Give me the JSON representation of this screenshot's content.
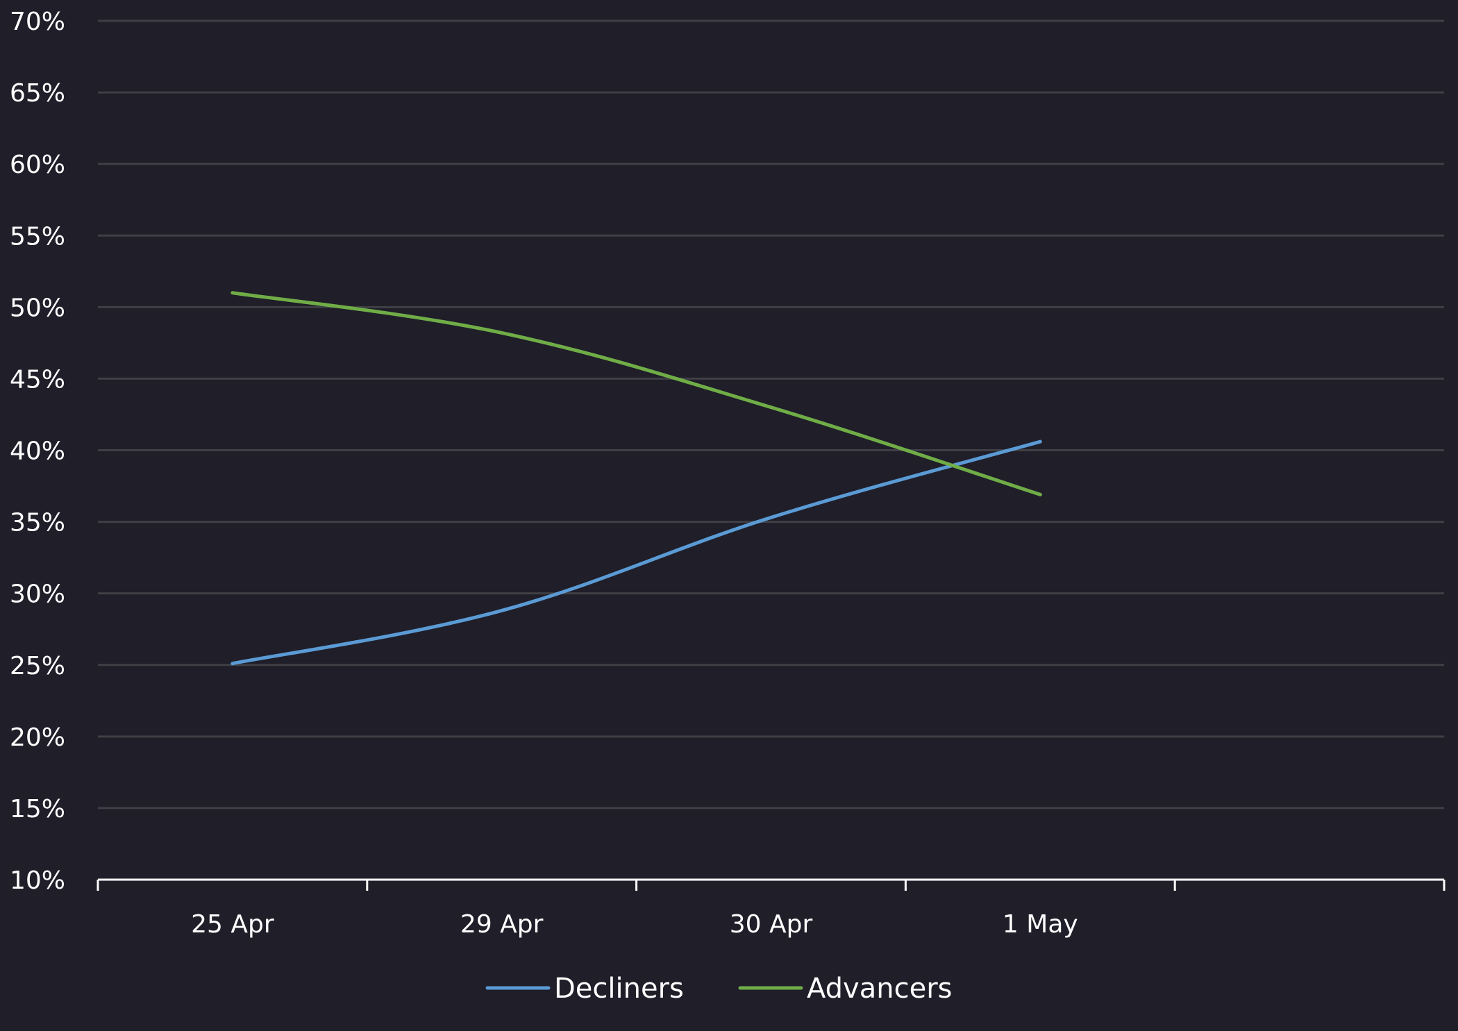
{
  "chart_data": {
    "type": "line",
    "title": "",
    "xlabel": "",
    "ylabel": "",
    "categories": [
      "25 Apr",
      "29 Apr",
      "30 Apr",
      "1 May"
    ],
    "y_ticks": [
      "10%",
      "15%",
      "20%",
      "25%",
      "30%",
      "35%",
      "40%",
      "45%",
      "50%",
      "55%",
      "60%",
      "65%",
      "70%"
    ],
    "ylim": [
      10,
      70
    ],
    "grid": true,
    "legend_position": "bottom-center",
    "series": [
      {
        "name": "Decliners",
        "color": "#5b9bd5",
        "values": [
          25.1,
          28.8,
          35.3,
          40.6
        ]
      },
      {
        "name": "Advancers",
        "color": "#70ad47",
        "values": [
          51.0,
          48.2,
          43.0,
          36.9
        ]
      }
    ],
    "colors": {
      "background": "#1f1e29",
      "grid": "#3f3f45",
      "axis": "#ffffff",
      "text": "#ffffff"
    }
  }
}
